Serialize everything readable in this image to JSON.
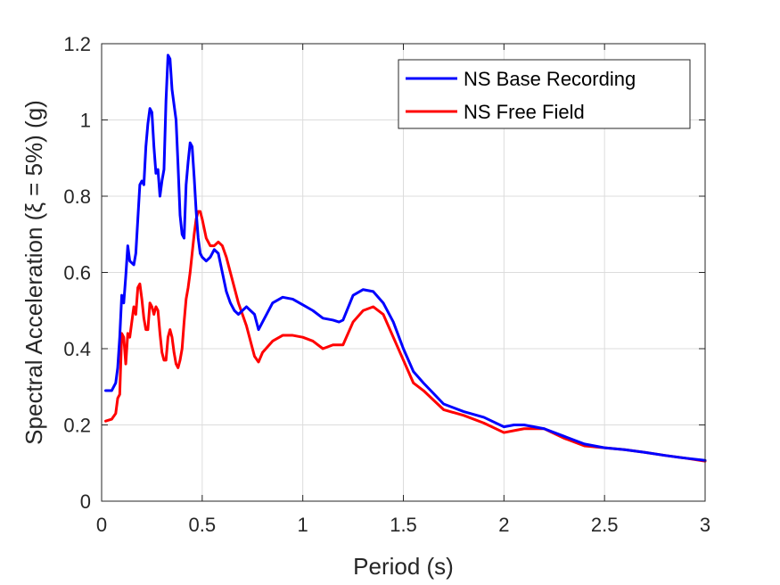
{
  "chart_data": {
    "type": "line",
    "title": "",
    "xlabel": "Period (s)",
    "ylabel": "Spectral Acceleration (ξ = 5%) (g)",
    "xlim": [
      0,
      3
    ],
    "ylim": [
      0,
      1.2
    ],
    "x_ticks": [
      "0",
      "0.5",
      "1",
      "1.5",
      "2",
      "2.5",
      "3"
    ],
    "y_ticks": [
      "0",
      "0.2",
      "0.4",
      "0.6",
      "0.8",
      "1",
      "1.2"
    ],
    "grid": true,
    "legend_position": "top-right",
    "series": [
      {
        "name": "NS Base Recording",
        "color": "#0000ff",
        "x": [
          0.02,
          0.05,
          0.07,
          0.08,
          0.09,
          0.1,
          0.11,
          0.12,
          0.13,
          0.14,
          0.16,
          0.17,
          0.18,
          0.19,
          0.2,
          0.21,
          0.22,
          0.23,
          0.24,
          0.25,
          0.26,
          0.27,
          0.28,
          0.29,
          0.3,
          0.31,
          0.32,
          0.33,
          0.34,
          0.35,
          0.36,
          0.37,
          0.38,
          0.39,
          0.4,
          0.41,
          0.42,
          0.43,
          0.44,
          0.45,
          0.46,
          0.47,
          0.48,
          0.49,
          0.5,
          0.52,
          0.54,
          0.56,
          0.58,
          0.6,
          0.62,
          0.64,
          0.66,
          0.68,
          0.7,
          0.72,
          0.74,
          0.76,
          0.78,
          0.8,
          0.85,
          0.9,
          0.95,
          1.0,
          1.05,
          1.1,
          1.15,
          1.18,
          1.2,
          1.25,
          1.3,
          1.35,
          1.4,
          1.45,
          1.5,
          1.55,
          1.6,
          1.7,
          1.8,
          1.9,
          2.0,
          2.05,
          2.1,
          2.2,
          2.3,
          2.4,
          2.5,
          2.6,
          2.7,
          2.8,
          2.9,
          3.0
        ],
        "y": [
          0.29,
          0.29,
          0.31,
          0.35,
          0.43,
          0.54,
          0.52,
          0.59,
          0.67,
          0.63,
          0.62,
          0.65,
          0.74,
          0.83,
          0.84,
          0.83,
          0.93,
          0.99,
          1.03,
          1.02,
          0.93,
          0.86,
          0.87,
          0.8,
          0.84,
          0.87,
          1.05,
          1.17,
          1.16,
          1.08,
          1.04,
          1.0,
          0.88,
          0.75,
          0.7,
          0.69,
          0.83,
          0.89,
          0.94,
          0.93,
          0.85,
          0.76,
          0.69,
          0.65,
          0.64,
          0.63,
          0.64,
          0.66,
          0.65,
          0.6,
          0.55,
          0.52,
          0.5,
          0.49,
          0.5,
          0.51,
          0.5,
          0.49,
          0.45,
          0.47,
          0.52,
          0.535,
          0.53,
          0.515,
          0.5,
          0.48,
          0.475,
          0.47,
          0.475,
          0.54,
          0.555,
          0.55,
          0.52,
          0.47,
          0.4,
          0.34,
          0.31,
          0.255,
          0.235,
          0.22,
          0.195,
          0.2,
          0.2,
          0.19,
          0.17,
          0.15,
          0.14,
          0.135,
          0.128,
          0.12,
          0.113,
          0.107
        ]
      },
      {
        "name": "NS Free Field",
        "color": "#ff0000",
        "x": [
          0.02,
          0.05,
          0.07,
          0.08,
          0.09,
          0.1,
          0.11,
          0.12,
          0.13,
          0.14,
          0.16,
          0.17,
          0.18,
          0.19,
          0.2,
          0.21,
          0.22,
          0.23,
          0.24,
          0.25,
          0.26,
          0.27,
          0.28,
          0.29,
          0.3,
          0.31,
          0.32,
          0.33,
          0.34,
          0.35,
          0.36,
          0.37,
          0.38,
          0.39,
          0.4,
          0.41,
          0.42,
          0.43,
          0.44,
          0.45,
          0.46,
          0.47,
          0.48,
          0.49,
          0.5,
          0.52,
          0.54,
          0.56,
          0.58,
          0.6,
          0.62,
          0.64,
          0.66,
          0.68,
          0.7,
          0.72,
          0.74,
          0.76,
          0.78,
          0.8,
          0.85,
          0.9,
          0.95,
          1.0,
          1.05,
          1.1,
          1.15,
          1.18,
          1.2,
          1.25,
          1.3,
          1.35,
          1.4,
          1.45,
          1.5,
          1.55,
          1.6,
          1.7,
          1.8,
          1.9,
          2.0,
          2.05,
          2.1,
          2.2,
          2.3,
          2.4,
          2.5,
          2.6,
          2.7,
          2.8,
          2.9,
          3.0
        ],
        "y": [
          0.21,
          0.215,
          0.23,
          0.27,
          0.28,
          0.44,
          0.43,
          0.36,
          0.44,
          0.43,
          0.51,
          0.49,
          0.56,
          0.57,
          0.53,
          0.48,
          0.45,
          0.45,
          0.52,
          0.51,
          0.49,
          0.51,
          0.5,
          0.44,
          0.39,
          0.37,
          0.37,
          0.43,
          0.45,
          0.43,
          0.39,
          0.36,
          0.35,
          0.37,
          0.4,
          0.47,
          0.53,
          0.56,
          0.6,
          0.65,
          0.7,
          0.74,
          0.76,
          0.76,
          0.74,
          0.69,
          0.67,
          0.67,
          0.68,
          0.67,
          0.64,
          0.6,
          0.56,
          0.52,
          0.49,
          0.46,
          0.42,
          0.38,
          0.365,
          0.39,
          0.42,
          0.435,
          0.435,
          0.43,
          0.42,
          0.4,
          0.41,
          0.41,
          0.41,
          0.47,
          0.5,
          0.51,
          0.49,
          0.43,
          0.37,
          0.31,
          0.29,
          0.24,
          0.225,
          0.205,
          0.18,
          0.185,
          0.19,
          0.19,
          0.165,
          0.145,
          0.14,
          0.135,
          0.128,
          0.12,
          0.113,
          0.105
        ]
      }
    ]
  }
}
